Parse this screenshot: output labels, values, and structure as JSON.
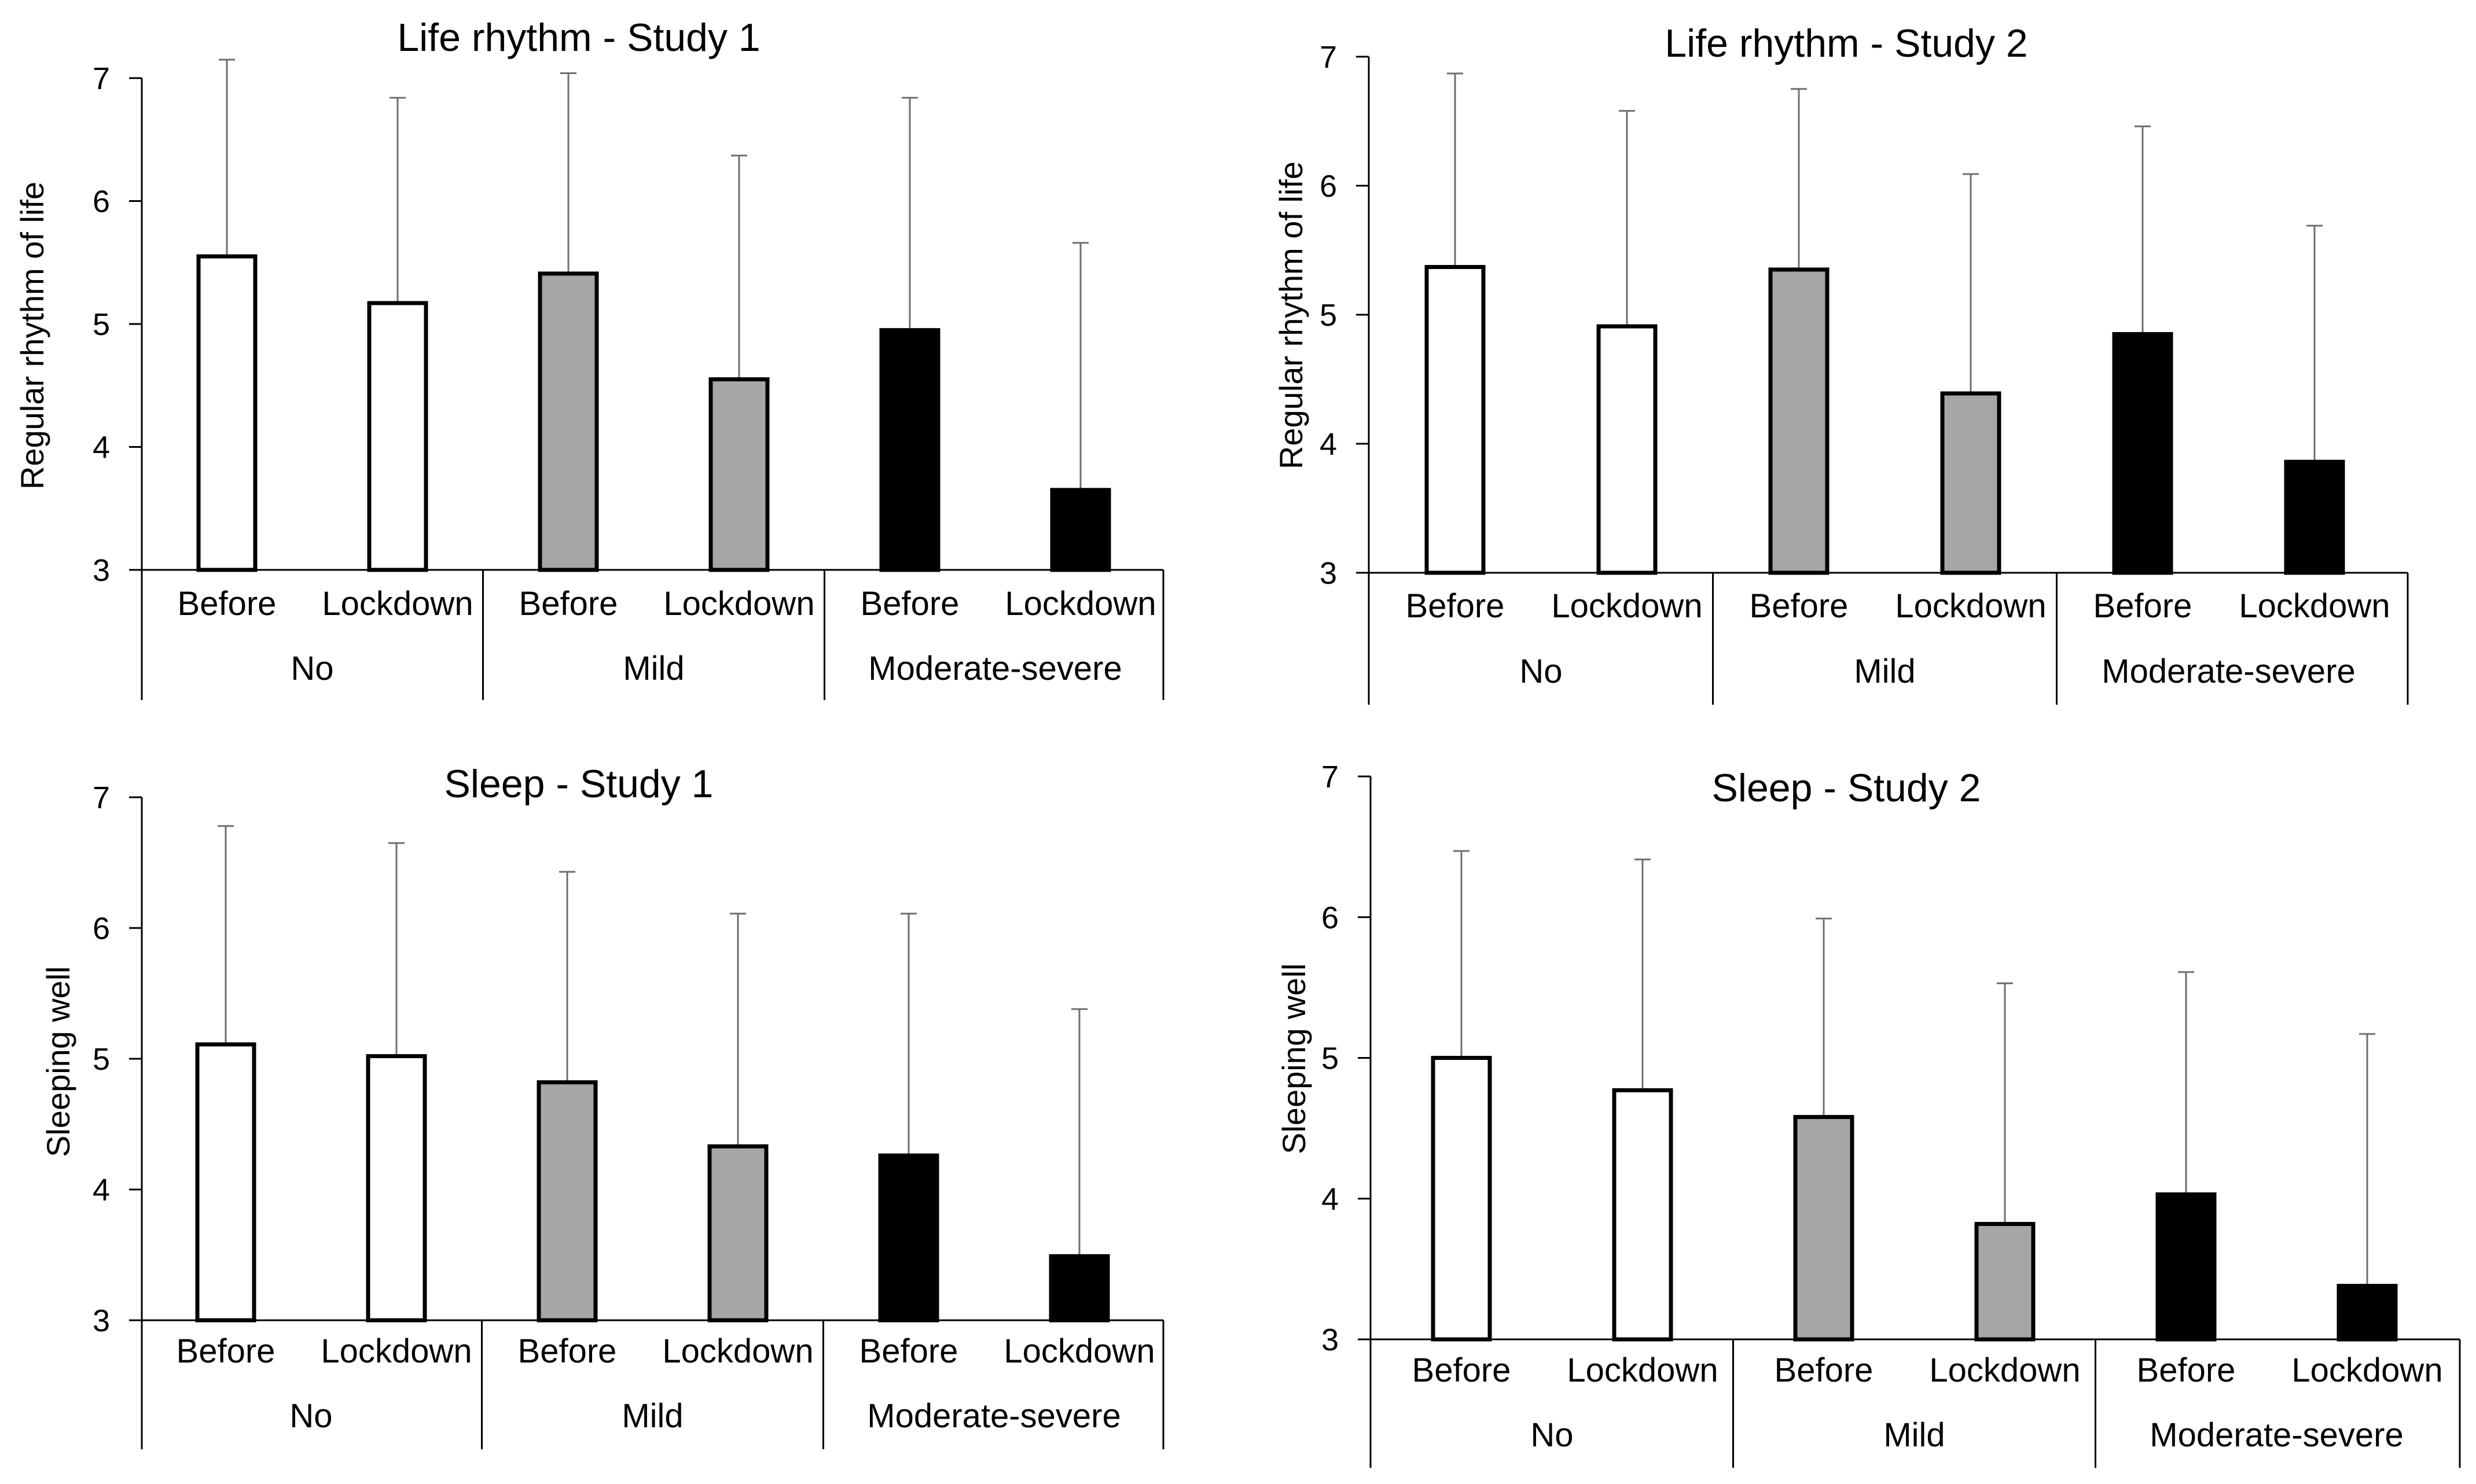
{
  "colors": {
    "none": "#ffffff",
    "mild": "#a6a6a6",
    "moderate_severe": "#000000",
    "axis": "#000000",
    "error_bar": "#6f6f6f"
  },
  "chart_data": [
    {
      "type": "bar",
      "title": "Life rhythm - Study 1",
      "ylabel": "Regular rhythm of life",
      "ylim": [
        3,
        7
      ],
      "yticks": [
        "3",
        "4",
        "5",
        "6",
        "7"
      ],
      "groups": [
        "No",
        "Mild",
        "Moderate-severe"
      ],
      "bar_labels": [
        "Before",
        "Lockdown",
        "Before",
        "Lockdown",
        "Before",
        "Lockdown"
      ],
      "bar_groups": [
        "none",
        "none",
        "mild",
        "mild",
        "moderate_severe",
        "moderate_severe"
      ],
      "values": [
        5.55,
        5.17,
        5.41,
        4.55,
        4.95,
        3.65
      ],
      "error_upper": [
        7.15,
        6.84,
        7.04,
        6.37,
        6.84,
        5.66
      ]
    },
    {
      "type": "bar",
      "title": "Life rhythm - Study 2",
      "ylabel": "Regular rhythm of life",
      "ylim": [
        3,
        7
      ],
      "yticks": [
        "3",
        "4",
        "5",
        "6",
        "7"
      ],
      "groups": [
        "No",
        "Mild",
        "Moderate-severe"
      ],
      "bar_labels": [
        "Before",
        "Lockdown",
        "Before",
        "Lockdown",
        "Before",
        "Lockdown"
      ],
      "bar_groups": [
        "none",
        "none",
        "mild",
        "mild",
        "moderate_severe",
        "moderate_severe"
      ],
      "values": [
        5.37,
        4.91,
        5.35,
        4.39,
        4.85,
        3.86
      ],
      "error_upper": [
        6.87,
        6.58,
        6.75,
        6.09,
        6.46,
        5.69
      ]
    },
    {
      "type": "bar",
      "title": "Sleep - Study 1",
      "ylabel": "Sleeping well",
      "ylim": [
        3,
        7
      ],
      "yticks": [
        "3",
        "4",
        "5",
        "6",
        "7"
      ],
      "groups": [
        "No",
        "Mild",
        "Moderate-severe"
      ],
      "bar_labels": [
        "Before",
        "Lockdown",
        "Before",
        "Lockdown",
        "Before",
        "Lockdown"
      ],
      "bar_groups": [
        "none",
        "none",
        "mild",
        "mild",
        "moderate_severe",
        "moderate_severe"
      ],
      "values": [
        5.11,
        5.02,
        4.82,
        4.33,
        4.26,
        3.49
      ],
      "error_upper": [
        6.78,
        6.65,
        6.43,
        6.11,
        6.11,
        5.38
      ]
    },
    {
      "type": "bar",
      "title": "Sleep - Study 2",
      "ylabel": "Sleeping well",
      "ylim": [
        3,
        7
      ],
      "yticks": [
        "3",
        "4",
        "5",
        "6",
        "7"
      ],
      "groups": [
        "No",
        "Mild",
        "Moderate-severe"
      ],
      "bar_labels": [
        "Before",
        "Lockdown",
        "Before",
        "Lockdown",
        "Before",
        "Lockdown"
      ],
      "bar_groups": [
        "none",
        "none",
        "mild",
        "mild",
        "moderate_severe",
        "moderate_severe"
      ],
      "values": [
        5.0,
        4.77,
        4.58,
        3.82,
        4.03,
        3.38
      ],
      "error_upper": [
        6.47,
        6.41,
        5.99,
        5.53,
        5.61,
        5.17
      ]
    }
  ]
}
